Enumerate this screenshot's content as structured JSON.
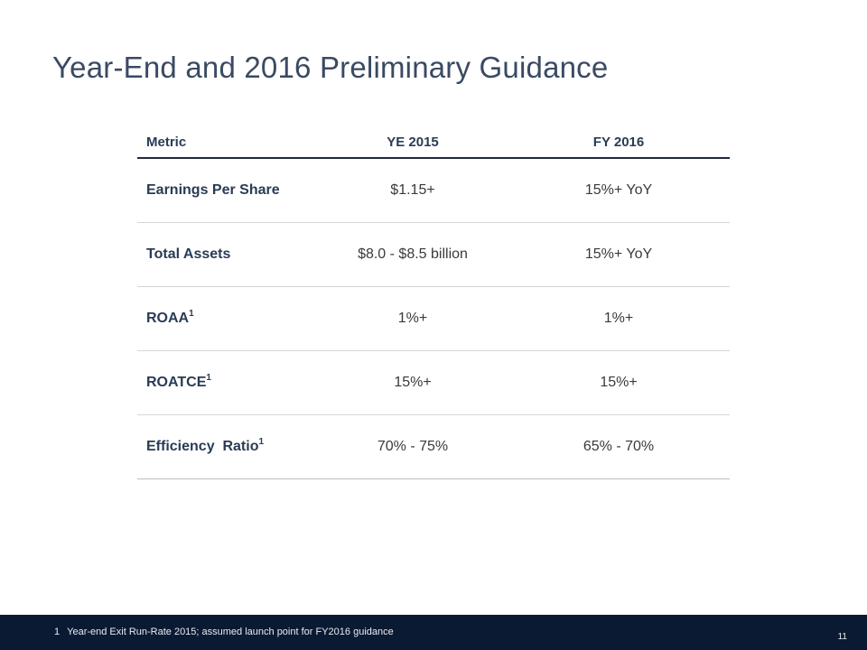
{
  "title": "Year-End and 2016 Preliminary Guidance",
  "table": {
    "headers": [
      "Metric",
      "YE 2015",
      "FY 2016"
    ],
    "rows": [
      {
        "metric": "Earnings Per Share",
        "sup": "",
        "ye2015": "$1.15+",
        "fy2016": "15%+ YoY"
      },
      {
        "metric": "Total Assets",
        "sup": "",
        "ye2015": "$8.0 - $8.5 billion",
        "fy2016": "15%+ YoY"
      },
      {
        "metric": "ROAA",
        "sup": "1",
        "ye2015": "1%+",
        "fy2016": "1%+"
      },
      {
        "metric": "ROATCE",
        "sup": "1",
        "ye2015": "15%+",
        "fy2016": "15%+"
      },
      {
        "metric": "Efficiency  Ratio",
        "sup": "1",
        "ye2015": "70% - 75%",
        "fy2016": "65% - 70%"
      }
    ]
  },
  "footer": {
    "footnote_number": "1",
    "footnote_text": "Year-end Exit Run-Rate 2015; assumed launch point for FY2016 guidance",
    "page_number": "11",
    "bar_color": "#0b1a33"
  },
  "colors": {
    "title": "#3a4a63",
    "table_label": "#2a3b55",
    "header_rule": "#1f2a3d"
  }
}
